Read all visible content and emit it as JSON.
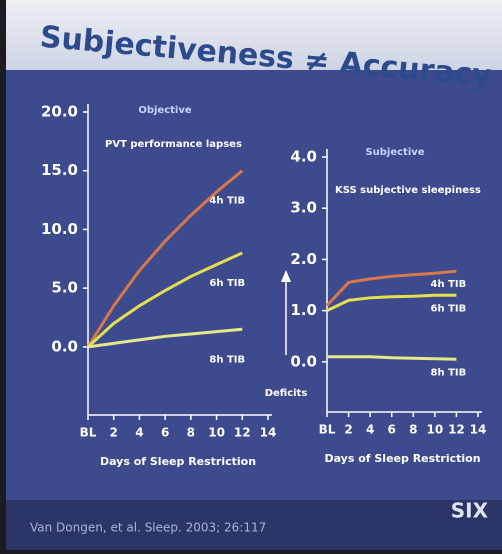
{
  "slide": {
    "title": "Subjectiveness ≠ Accuracy",
    "source": "Van Dongen, et al. Sleep. 2003; 26:117",
    "logo": "SIX"
  },
  "deficits_label": "Deficits",
  "chart_data": [
    {
      "type": "line",
      "title": "Objective",
      "annotation": "PVT performance lapses",
      "x_label": "Days of Sleep Restriction",
      "x": [
        0,
        2,
        4,
        6,
        8,
        10,
        12
      ],
      "xlim": [
        0,
        14
      ],
      "xticks": [
        {
          "value": 0,
          "label": "BL"
        },
        2,
        4,
        6,
        8,
        10,
        12,
        14
      ],
      "ylim": [
        -5.8,
        20
      ],
      "yticks": [
        {
          "value": 0,
          "label": "0.0"
        },
        {
          "value": 5,
          "label": "5.0"
        },
        {
          "value": 10,
          "label": "10.0"
        },
        {
          "value": 15,
          "label": "15.0"
        },
        {
          "value": 20,
          "label": "20.0"
        }
      ],
      "series": [
        {
          "name": "4h TIB",
          "color": "#d9774a",
          "values": [
            0,
            3.5,
            6.5,
            9,
            11.2,
            13.2,
            15
          ]
        },
        {
          "name": "6h TIB",
          "color": "#e3df4e",
          "values": [
            0,
            2,
            3.5,
            4.8,
            6,
            7,
            8
          ]
        },
        {
          "name": "8h TIB",
          "color": "#e6e88c",
          "values": [
            0,
            0.3,
            0.6,
            0.9,
            1.1,
            1.3,
            1.5
          ]
        }
      ]
    },
    {
      "type": "line",
      "title": "Subjective",
      "annotation": "KSS subjective sleepiness",
      "x_label": "Days of Sleep Restriction",
      "x": [
        0,
        2,
        4,
        6,
        8,
        10,
        12
      ],
      "xlim": [
        0,
        14
      ],
      "xticks": [
        {
          "value": 0,
          "label": "BL"
        },
        2,
        4,
        6,
        8,
        10,
        12,
        14
      ],
      "ylim": [
        -0.98,
        4
      ],
      "yticks": [
        {
          "value": 0,
          "label": "0.0"
        },
        {
          "value": 1,
          "label": "1.0"
        },
        {
          "value": 2,
          "label": "2.0"
        },
        {
          "value": 3,
          "label": "3.0"
        },
        {
          "value": 4,
          "label": "4.0"
        }
      ],
      "series": [
        {
          "name": "4h TIB",
          "color": "#d9774a",
          "values": [
            1.1,
            1.55,
            1.62,
            1.67,
            1.7,
            1.73,
            1.77
          ]
        },
        {
          "name": "6h TIB",
          "color": "#e3df4e",
          "values": [
            1.0,
            1.2,
            1.25,
            1.27,
            1.28,
            1.3,
            1.3
          ]
        },
        {
          "name": "8h TIB",
          "color": "#e6e88c",
          "values": [
            0.1,
            0.1,
            0.1,
            0.08,
            0.07,
            0.06,
            0.05
          ]
        }
      ]
    }
  ]
}
